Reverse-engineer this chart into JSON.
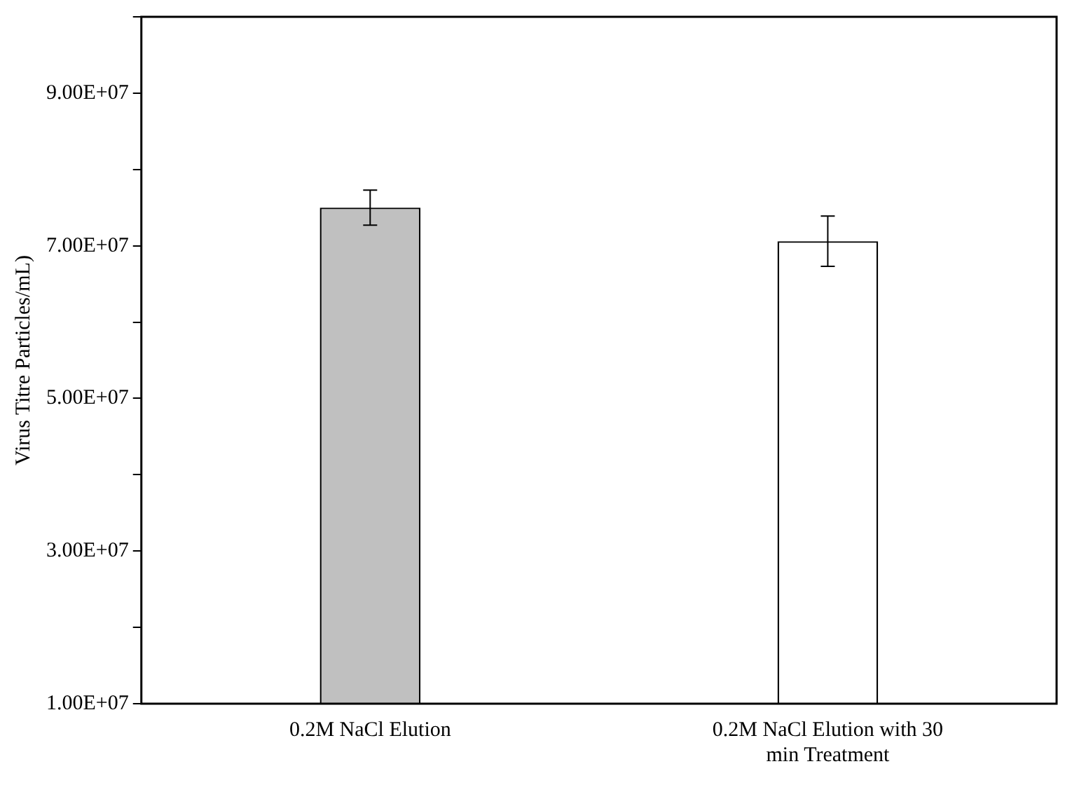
{
  "chart_data": {
    "type": "bar",
    "ylabel": "Virus Titre Particles/mL)",
    "categories": [
      "0.2M NaCl Elution",
      "0.2M NaCl Elution with 30 min Treatment"
    ],
    "values": [
      75000000,
      70600000
    ],
    "colors": [
      "#c0c0c0",
      "#ffffff"
    ],
    "errors": [
      2300000,
      3300000
    ],
    "ylim": [
      10000000,
      100000000
    ],
    "yticks": [
      {
        "value": 10000000,
        "label": "1.00E+07"
      },
      {
        "value": 20000000,
        "label": null
      },
      {
        "value": 30000000,
        "label": "3.00E+07"
      },
      {
        "value": 40000000,
        "label": null
      },
      {
        "value": 50000000,
        "label": "5.00E+07"
      },
      {
        "value": 60000000,
        "label": null
      },
      {
        "value": 70000000,
        "label": "7.00E+07"
      },
      {
        "value": 80000000,
        "label": null
      },
      {
        "value": 90000000,
        "label": "9.00E+07"
      },
      {
        "value": 100000000,
        "label": null
      }
    ],
    "grid": false,
    "legend": false
  }
}
